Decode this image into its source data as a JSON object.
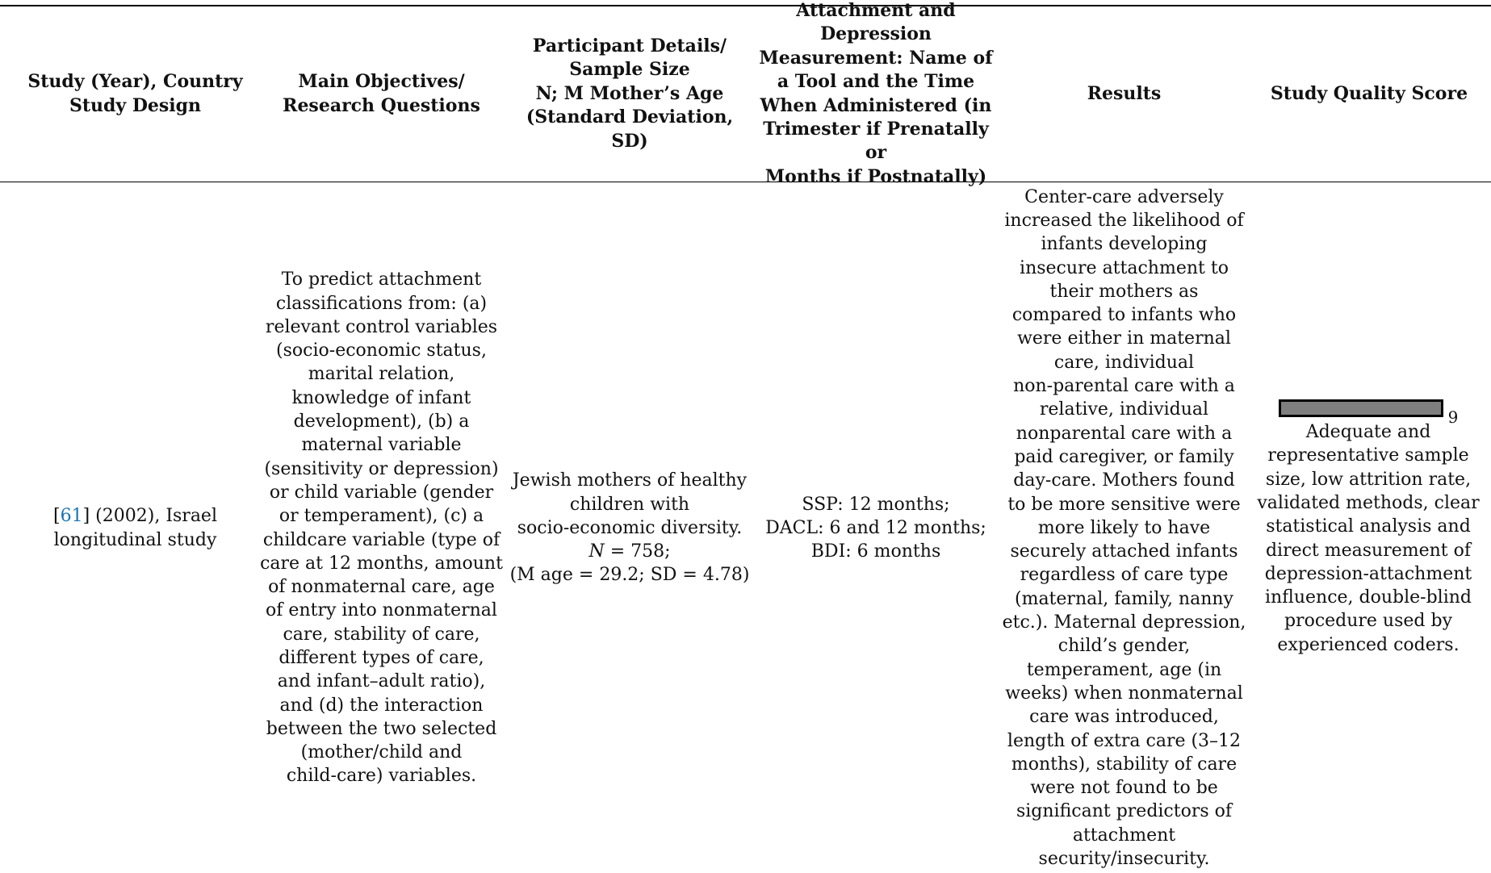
{
  "headers": {
    "study": [
      "Study (Year), Country",
      "Study Design"
    ],
    "objectives": [
      "Main Objectives/",
      "Research Questions"
    ],
    "participants": [
      "Participant Details/",
      "Sample Size",
      "N; M Mother’s Age",
      "(Standard Deviation,",
      "SD)"
    ],
    "measurement": [
      "Attachment and",
      "Depression",
      "Measurement: Name of",
      "a Tool and the Time",
      "When Administered (in",
      "Trimester if Prenatally or",
      "Months if Postnatally)"
    ],
    "results": [
      "Results"
    ],
    "quality": [
      "Study Quality Score"
    ]
  },
  "row": {
    "study": {
      "ref": "61",
      "line1_rest": " (2002), Israel",
      "line2": "longitudinal study"
    },
    "objectives": [
      "To predict attachment",
      "classifications from: (a)",
      "relevant control variables",
      "(socio-economic status,",
      "marital relation,",
      "knowledge of infant",
      "development), (b) a",
      "maternal variable",
      "(sensitivity or depression)",
      "or child variable (gender",
      "or temperament), (c) a",
      "childcare variable (type of",
      "care at 12 months, amount",
      "of nonmaternal care, age",
      "of entry into nonmaternal",
      "care, stability of care,",
      "different types of care,",
      "and infant–adult ratio),",
      "and (d) the interaction",
      "between the two selected",
      "(mother/child and",
      "child-care) variables."
    ],
    "participants": {
      "lines": [
        "Jewish mothers of healthy",
        "children with",
        "socio-economic diversity."
      ],
      "n_label": "N",
      "n_value": " = 758;",
      "age_line": "(M age = 29.2; SD = 4.78)"
    },
    "measurement": [
      "SSP: 12 months;",
      "DACL: 6 and 12 months;",
      "BDI: 6 months"
    ],
    "results": [
      "Center-care adversely",
      "increased the likelihood of",
      "infants developing",
      "insecure attachment to",
      "their mothers as",
      "compared to infants who",
      "were either in maternal",
      "care, individual",
      "non-parental care with a",
      "relative, individual",
      "nonparental care with a",
      "paid caregiver, or family",
      "day-care.  Mothers found",
      "to be more sensitive were",
      "more likely to have",
      "securely attached infants",
      "regardless of care type",
      "(maternal, family, nanny",
      "etc.).  Maternal depression,",
      "child’s gender,",
      "temperament, age (in",
      "weeks) when nonmaternal",
      "care was introduced,",
      "length of extra care (3–12",
      "months), stability of care",
      "were not found to be",
      "significant predictors of",
      "attachment",
      "security/insecurity."
    ],
    "quality": {
      "score": "9",
      "score_fraction": 1.0,
      "bar_color": "#7f7f7f",
      "lines": [
        "Adequate and",
        "representative sample",
        "size, low attrition rate,",
        "validated methods, clear",
        "statistical analysis and",
        "direct measurement of",
        "depression-attachment",
        "influence, double-blind",
        "procedure used by",
        "experienced coders."
      ]
    }
  },
  "colors": {
    "reference_link": "#1a73b8",
    "text": "#111111",
    "rules": "#000000"
  }
}
